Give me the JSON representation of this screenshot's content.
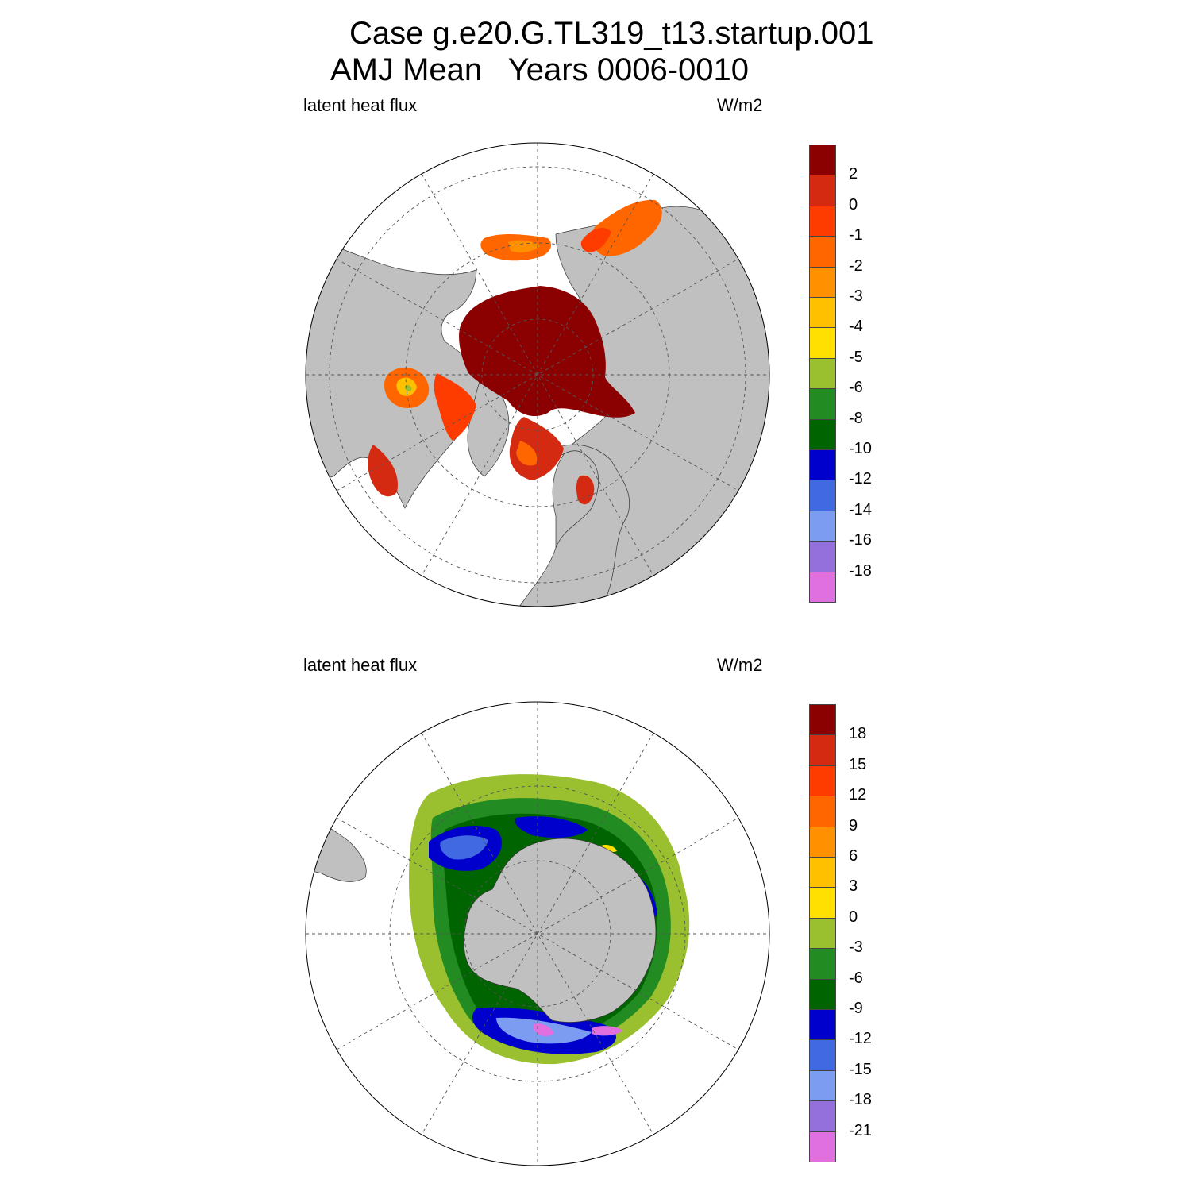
{
  "title": {
    "line1": "Case g.e20.G.TL319_t13.startup.001",
    "line2": "AMJ Mean   Years 0006-0010"
  },
  "panels": [
    {
      "id": "north",
      "left_label": "latent heat flux",
      "right_label": "W/m2",
      "colorbar": {
        "colors": [
          "#8b0000",
          "#d42a12",
          "#ff3c00",
          "#ff6600",
          "#ff9000",
          "#ffc000",
          "#ffe000",
          "#9ac030",
          "#228b22",
          "#006400",
          "#0000cd",
          "#4169e1",
          "#7b9cf0",
          "#9370db",
          "#e070e0"
        ],
        "labels": [
          "2",
          "0",
          "-1",
          "-2",
          "-3",
          "-4",
          "-5",
          "-6",
          "-8",
          "-10",
          "-12",
          "-14",
          "-16",
          "-18"
        ]
      }
    },
    {
      "id": "south",
      "left_label": "latent heat flux",
      "right_label": "W/m2",
      "colorbar": {
        "colors": [
          "#8b0000",
          "#d42a12",
          "#ff3c00",
          "#ff6600",
          "#ff9000",
          "#ffc000",
          "#ffe000",
          "#9ac030",
          "#228b22",
          "#006400",
          "#0000cd",
          "#4169e1",
          "#7b9cf0",
          "#9370db",
          "#e070e0"
        ],
        "labels": [
          "18",
          "15",
          "12",
          "9",
          "6",
          "3",
          "0",
          "-3",
          "-6",
          "-9",
          "-12",
          "-15",
          "-18",
          "-21"
        ]
      }
    }
  ],
  "colors": {
    "land": "#c0c0c0",
    "ocean_missing": "#ffffff",
    "grid": "#555555"
  }
}
